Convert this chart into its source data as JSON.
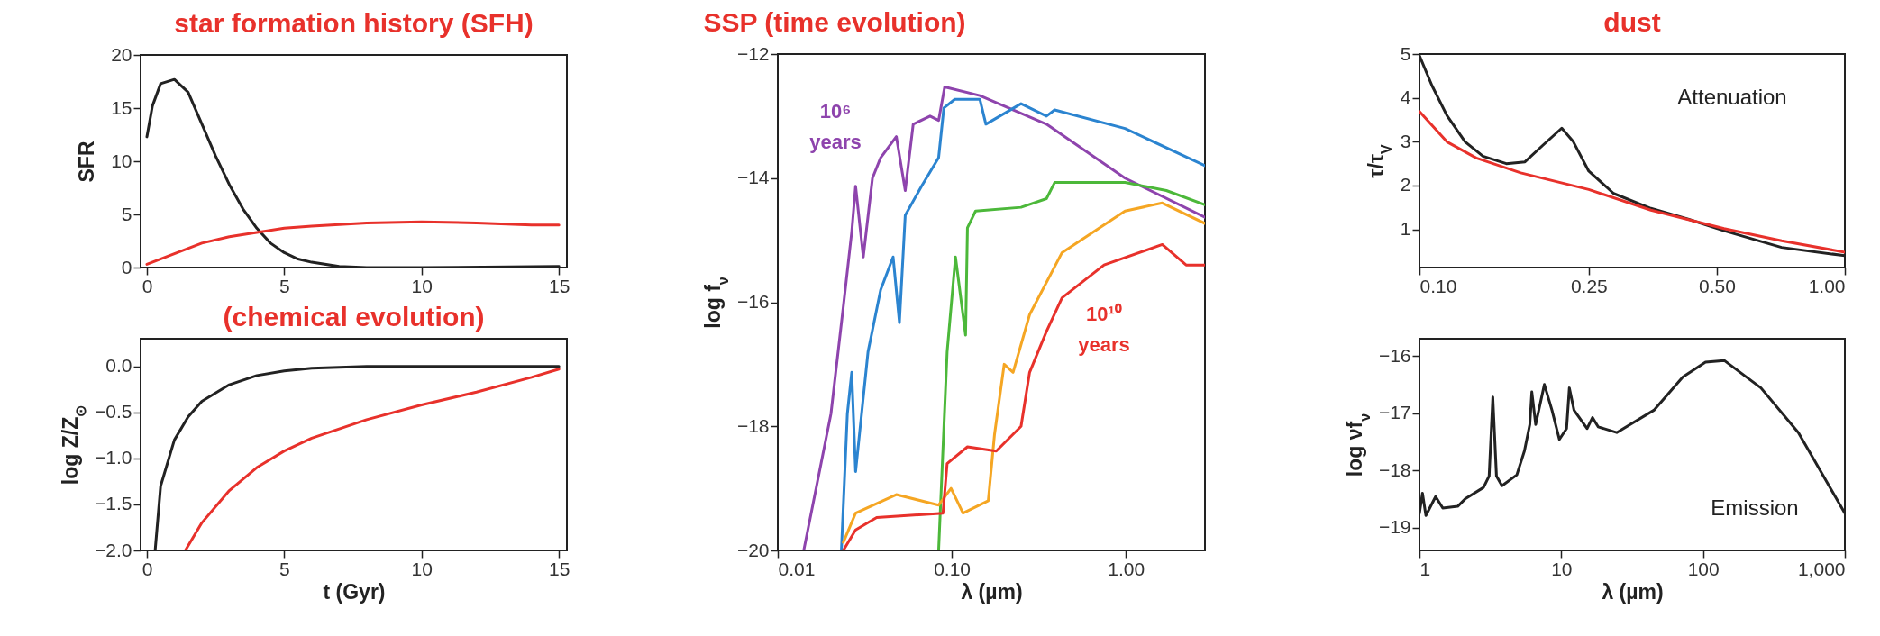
{
  "chart_data": [
    {
      "type": "line",
      "title": "star formation history (SFH)",
      "ylabel": "SFR",
      "xlim": [
        -0.23,
        15.29
      ],
      "xticks": [
        0,
        5,
        10,
        15
      ],
      "ylim": [
        0,
        20
      ],
      "yticks": [
        0,
        5,
        10,
        15,
        20
      ],
      "series": [
        {
          "color": "#222222",
          "x": [
            0,
            0.2,
            0.5,
            1,
            1.5,
            2,
            2.5,
            3,
            3.5,
            4,
            4.5,
            5,
            5.5,
            6,
            7,
            8,
            10,
            15
          ],
          "values": [
            12.3,
            15.2,
            17.3,
            17.7,
            16.5,
            13.5,
            10.5,
            7.8,
            5.5,
            3.7,
            2.3,
            1.4,
            0.8,
            0.5,
            0.1,
            0,
            0,
            0.1
          ]
        },
        {
          "color": "#e8312b",
          "x": [
            0,
            1,
            2,
            3,
            4,
            5,
            6,
            8,
            10,
            12,
            14,
            15
          ],
          "values": [
            0.3,
            1.3,
            2.3,
            2.9,
            3.3,
            3.7,
            3.9,
            4.2,
            4.3,
            4.2,
            4,
            4
          ]
        }
      ]
    },
    {
      "type": "line",
      "title": "(chemical evolution)",
      "xlabel": "t (Gyr)",
      "ylabel": "log Z/Z$_{⊙}$",
      "xlim": [
        -0.23,
        15.29
      ],
      "xticks": [
        0,
        5,
        10,
        15
      ],
      "ylim": [
        -2,
        0.3
      ],
      "yticks": [
        {
          "value": -2,
          "label": "−2.0"
        },
        {
          "value": -1.5,
          "label": "−1.5"
        },
        {
          "value": -1,
          "label": "−1.0"
        },
        {
          "value": -0.5,
          "label": "−0.5"
        },
        {
          "value": 0,
          "label": "0.0"
        }
      ],
      "series": [
        {
          "color": "#222222",
          "x": [
            0.3,
            0.5,
            1,
            1.5,
            2,
            3,
            4,
            5,
            6,
            8,
            15
          ],
          "values": [
            -2,
            -1.3,
            -0.8,
            -0.55,
            -0.38,
            -0.2,
            -0.1,
            -0.05,
            -0.02,
            0,
            0
          ]
        },
        {
          "color": "#e8312b",
          "x": [
            1.4,
            2,
            3,
            4,
            5,
            6,
            8,
            10,
            12,
            14,
            15
          ],
          "values": [
            -2,
            -1.7,
            -1.35,
            -1.1,
            -0.92,
            -0.78,
            -0.58,
            -0.42,
            -0.28,
            -0.12,
            -0.03
          ]
        }
      ]
    },
    {
      "type": "line",
      "title": "SSP   (time evolution)",
      "xlabel": "λ (µm)",
      "ylabel": "log f$_{ν}$",
      "log": "x",
      "xlim": [
        0.01,
        2.85
      ],
      "xticks": [
        {
          "value": 0.01,
          "label": "0.01"
        },
        {
          "value": 0.1,
          "label": "0.10"
        },
        {
          "value": 1,
          "label": "1.00"
        }
      ],
      "ylim": [
        -20,
        -12
      ],
      "yticks": [
        -20,
        -18,
        -16,
        -14,
        -12
      ],
      "series": [
        {
          "name": "10⁶ years",
          "color": "#8e44ad",
          "x": [
            0.0141,
            0.0202,
            0.0238,
            0.0266,
            0.028,
            0.031,
            0.035,
            0.039,
            0.048,
            0.054,
            0.06,
            0.075,
            0.084,
            0.091,
            0.145,
            0.35,
            0.99,
            2.85
          ],
          "values": [
            -20,
            -17.8,
            -16.07,
            -14.87,
            -14.13,
            -15.27,
            -14,
            -13.67,
            -13.33,
            -14.2,
            -13.13,
            -13,
            -13.07,
            -12.53,
            -12.67,
            -13.13,
            -14,
            -14.63
          ]
        },
        {
          "color": "#2b84d0",
          "x": [
            0.0232,
            0.0251,
            0.0266,
            0.028,
            0.033,
            0.039,
            0.046,
            0.05,
            0.054,
            0.067,
            0.084,
            0.09,
            0.104,
            0.145,
            0.157,
            0.25,
            0.35,
            0.39,
            0.99,
            2.85
          ],
          "values": [
            -20,
            -17.8,
            -17.13,
            -18.73,
            -16.8,
            -15.8,
            -15.27,
            -16.33,
            -14.6,
            -14.13,
            -13.67,
            -12.87,
            -12.73,
            -12.73,
            -13.13,
            -12.8,
            -13,
            -12.9,
            -13.2,
            -13.8
          ]
        },
        {
          "color": "#4cb83a",
          "x": [
            0.084,
            0.094,
            0.105,
            0.12,
            0.123,
            0.137,
            0.25,
            0.35,
            0.39,
            0.99,
            1.71,
            2.85
          ],
          "values": [
            -20,
            -16.8,
            -15.27,
            -16.53,
            -14.8,
            -14.53,
            -14.47,
            -14.33,
            -14.07,
            -14.07,
            -14.2,
            -14.43
          ]
        },
        {
          "color": "#f5a623",
          "x": [
            0.0238,
            0.028,
            0.048,
            0.084,
            0.099,
            0.116,
            0.162,
            0.176,
            0.2,
            0.225,
            0.28,
            0.43,
            0.99,
            1.62,
            2.85
          ],
          "values": [
            -19.87,
            -19.4,
            -19.1,
            -19.27,
            -19,
            -19.4,
            -19.2,
            -18.13,
            -17,
            -17.13,
            -16.2,
            -15.2,
            -14.53,
            -14.4,
            -14.73
          ]
        },
        {
          "name": "10¹⁰ years",
          "color": "#e8312b",
          "x": [
            0.0238,
            0.028,
            0.037,
            0.089,
            0.094,
            0.123,
            0.18,
            0.25,
            0.28,
            0.35,
            0.43,
            0.75,
            1.62,
            2.22,
            2.85
          ],
          "values": [
            -20,
            -19.67,
            -19.47,
            -19.4,
            -18.6,
            -18.33,
            -18.4,
            -18,
            -17.13,
            -16.47,
            -15.93,
            -15.4,
            -15.07,
            -15.4,
            -15.4
          ]
        }
      ]
    },
    {
      "type": "line",
      "title": "dust",
      "ylabel": "τ/τ$_{V}$",
      "log": "x",
      "xlim": [
        0.1,
        1
      ],
      "xticks": [
        {
          "value": 0.1,
          "label": "0.10"
        },
        {
          "value": 0.25,
          "label": "0.25"
        },
        {
          "value": 0.5,
          "label": "0.50"
        },
        {
          "value": 1,
          "label": "1.00"
        }
      ],
      "ylim": [
        0.13,
        5
      ],
      "yticks": [
        1,
        2,
        3,
        4,
        5
      ],
      "annotations": [
        "Attenuation"
      ],
      "series": [
        {
          "color": "#222222",
          "x": [
            0.1,
            0.107,
            0.116,
            0.128,
            0.141,
            0.16,
            0.177,
            0.195,
            0.216,
            0.23,
            0.25,
            0.286,
            0.35,
            0.43,
            0.52,
            0.71,
            1
          ],
          "values": [
            4.96,
            4.28,
            3.6,
            3,
            2.67,
            2.5,
            2.54,
            2.92,
            3.31,
            3,
            2.33,
            1.82,
            1.48,
            1.23,
            0.97,
            0.59,
            0.4
          ]
        },
        {
          "color": "#e8312b",
          "x": [
            0.1,
            0.116,
            0.136,
            0.173,
            0.25,
            0.35,
            0.52,
            0.71,
            1
          ],
          "values": [
            3.69,
            3,
            2.63,
            2.29,
            1.91,
            1.44,
            1.02,
            0.74,
            0.48
          ]
        }
      ]
    },
    {
      "type": "line",
      "xlabel": "λ (µm)",
      "ylabel": "log νf$_{ν}$",
      "log": "x",
      "xlim": [
        1,
        1000
      ],
      "xticks": [
        1,
        10,
        100,
        {
          "value": 1000,
          "label": "1,000"
        }
      ],
      "ylim": [
        -19.4,
        -15.7
      ],
      "yticks": [
        -19,
        -18,
        -17,
        -16
      ],
      "annotations": [
        "Emission"
      ],
      "series": [
        {
          "color": "#222222",
          "x": [
            1,
            1.05,
            1.11,
            1.3,
            1.46,
            1.86,
            2.1,
            2.83,
            3.1,
            3.29,
            3.49,
            3.82,
            4.86,
            5.5,
            6,
            6.2,
            6.6,
            7.6,
            8.6,
            9.7,
            10.9,
            11.4,
            12.3,
            15.2,
            16.6,
            18.2,
            24.6,
            45,
            72,
            104,
            141,
            256,
            470,
            1000
          ],
          "values": [
            -18.75,
            -18.4,
            -18.79,
            -18.46,
            -18.66,
            -18.63,
            -18.5,
            -18.3,
            -18.1,
            -16.72,
            -18.1,
            -18.27,
            -18.08,
            -17.66,
            -17.2,
            -16.63,
            -17.2,
            -16.5,
            -16.95,
            -17.46,
            -17.27,
            -16.56,
            -16.95,
            -17.27,
            -17.08,
            -17.24,
            -17.34,
            -16.95,
            -16.37,
            -16.11,
            -16.08,
            -16.56,
            -17.34,
            -18.75
          ]
        }
      ]
    }
  ]
}
